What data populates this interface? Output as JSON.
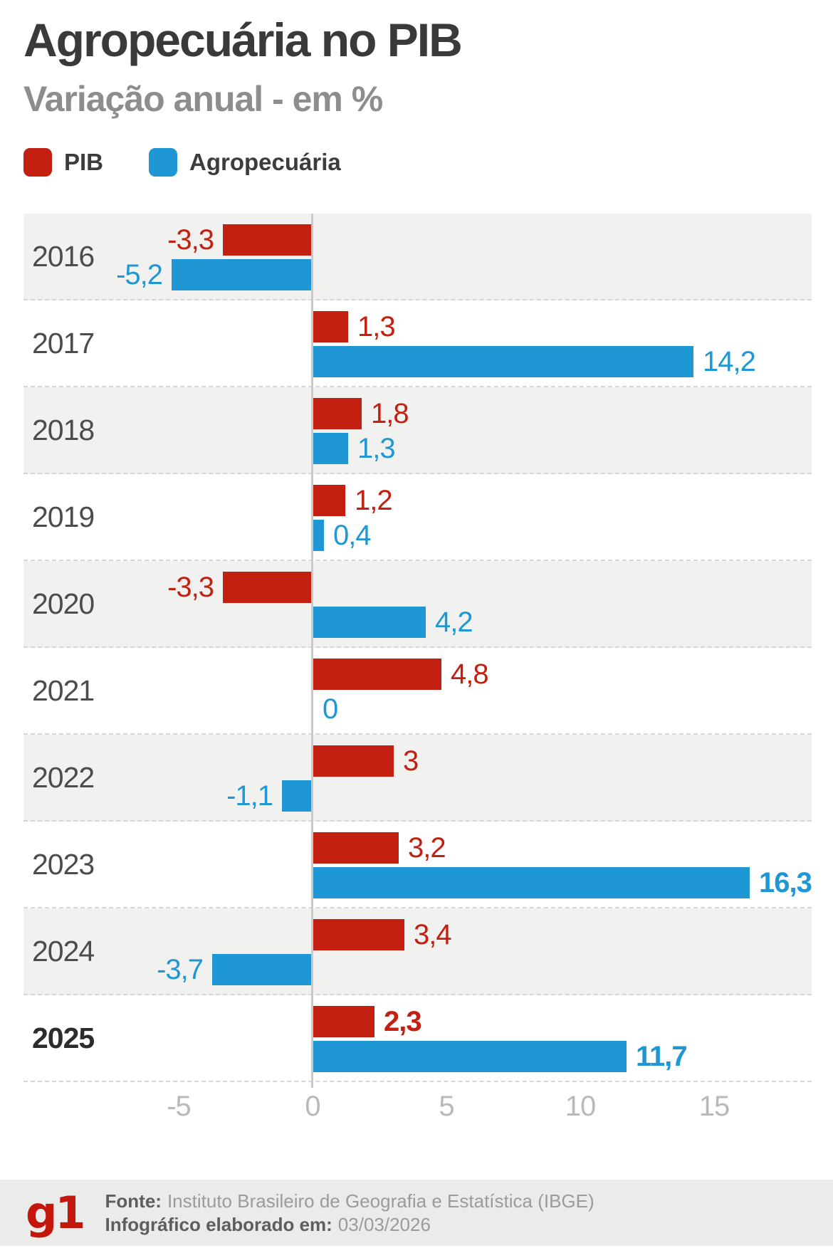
{
  "header": {
    "title": "Agropecuária no PIB",
    "subtitle": "Variação anual - em %"
  },
  "legend": {
    "items": [
      {
        "label": "PIB",
        "color": "#c32011"
      },
      {
        "label": "Agropecuária",
        "color": "#1e97d4"
      }
    ]
  },
  "chart_data": {
    "type": "bar",
    "orientation": "horizontal",
    "title": "Agropecuária no PIB",
    "subtitle": "Variação anual - em %",
    "unit": "%",
    "categories": [
      "2016",
      "2017",
      "2018",
      "2019",
      "2020",
      "2021",
      "2022",
      "2023",
      "2024",
      "2025"
    ],
    "category_bold": [
      false,
      false,
      false,
      false,
      false,
      false,
      false,
      false,
      false,
      true
    ],
    "series": [
      {
        "name": "PIB",
        "color": "#c32011",
        "values": [
          -3.3,
          1.3,
          1.8,
          1.2,
          -3.3,
          4.8,
          3,
          3.2,
          3.4,
          2.3
        ],
        "labels": [
          "-3,3",
          "1,3",
          "1,8",
          "1,2",
          "-3,3",
          "4,8",
          "3",
          "3,2",
          "3,4",
          "2,3"
        ],
        "bold": [
          false,
          false,
          false,
          false,
          false,
          false,
          false,
          false,
          false,
          true
        ]
      },
      {
        "name": "Agropecuária",
        "color": "#1e97d4",
        "values": [
          -5.2,
          14.2,
          1.3,
          0.4,
          4.2,
          0,
          -1.1,
          16.3,
          -3.7,
          11.7
        ],
        "labels": [
          "-5,2",
          "14,2",
          "1,3",
          "0,4",
          "4,2",
          "0",
          "-1,1",
          "16,3",
          "-3,7",
          "11,7"
        ],
        "bold": [
          false,
          false,
          false,
          false,
          false,
          false,
          false,
          true,
          false,
          true
        ]
      }
    ],
    "x_axis": {
      "tick_values": [
        -5,
        0,
        5,
        10,
        15
      ],
      "tick_labels": [
        "-5",
        "0",
        "5",
        "10",
        "15"
      ],
      "range": [
        -5,
        15
      ],
      "grid": false
    },
    "legend_position": "top",
    "row_shading": "alternate",
    "row_separator": "dashed"
  },
  "footer": {
    "logo": "g1",
    "logo_color": "#c3170b",
    "source_label": "Fonte:",
    "source_value": "Instituto Brasileiro de Geografia e Estatística (IBGE)",
    "date_label": "Infográfico elaborado em:",
    "date_value": "03/03/2026"
  }
}
